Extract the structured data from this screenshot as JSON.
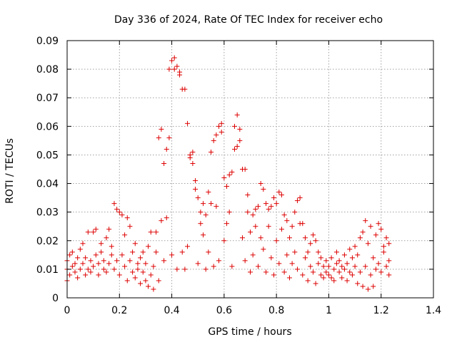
{
  "chart_data": {
    "type": "scatter",
    "title": "Day 336 of 2024, Rate Of TEC Index for receiver echo",
    "xlabel": "GPS time / hours",
    "ylabel": "ROTI / TECUs",
    "xlim": [
      0,
      1.4
    ],
    "ylim": [
      0,
      0.09
    ],
    "xticks": [
      "0",
      "0.2",
      "0.4",
      "0.6",
      "0.8",
      "1",
      "1.2",
      "1.4"
    ],
    "yticks": [
      "0",
      "0.01",
      "0.02",
      "0.03",
      "0.04",
      "0.05",
      "0.06",
      "0.07",
      "0.08",
      "0.09"
    ],
    "grid": true,
    "marker": "+",
    "series": [
      {
        "color": "#dd0000",
        "points": [
          [
            0.0,
            0.006
          ],
          [
            0.0,
            0.01
          ],
          [
            0.0,
            0.013
          ],
          [
            0.01,
            0.015
          ],
          [
            0.01,
            0.008
          ],
          [
            0.02,
            0.011
          ],
          [
            0.02,
            0.016
          ],
          [
            0.03,
            0.009
          ],
          [
            0.03,
            0.012
          ],
          [
            0.04,
            0.007
          ],
          [
            0.04,
            0.014
          ],
          [
            0.05,
            0.01
          ],
          [
            0.05,
            0.017
          ],
          [
            0.06,
            0.012
          ],
          [
            0.06,
            0.019
          ],
          [
            0.07,
            0.008
          ],
          [
            0.07,
            0.014
          ],
          [
            0.08,
            0.01
          ],
          [
            0.08,
            0.023
          ],
          [
            0.09,
            0.013
          ],
          [
            0.09,
            0.009
          ],
          [
            0.1,
            0.023
          ],
          [
            0.1,
            0.011
          ],
          [
            0.11,
            0.015
          ],
          [
            0.11,
            0.024
          ],
          [
            0.12,
            0.008
          ],
          [
            0.12,
            0.012
          ],
          [
            0.13,
            0.016
          ],
          [
            0.13,
            0.019
          ],
          [
            0.14,
            0.01
          ],
          [
            0.14,
            0.013
          ],
          [
            0.15,
            0.021
          ],
          [
            0.15,
            0.009
          ],
          [
            0.16,
            0.024
          ],
          [
            0.16,
            0.012
          ],
          [
            0.17,
            0.015
          ],
          [
            0.17,
            0.018
          ],
          [
            0.18,
            0.033
          ],
          [
            0.18,
            0.01
          ],
          [
            0.19,
            0.031
          ],
          [
            0.19,
            0.013
          ],
          [
            0.2,
            0.03
          ],
          [
            0.2,
            0.008
          ],
          [
            0.21,
            0.029
          ],
          [
            0.21,
            0.015
          ],
          [
            0.22,
            0.022
          ],
          [
            0.22,
            0.011
          ],
          [
            0.23,
            0.028
          ],
          [
            0.23,
            0.006
          ],
          [
            0.24,
            0.025
          ],
          [
            0.24,
            0.013
          ],
          [
            0.25,
            0.009
          ],
          [
            0.25,
            0.016
          ],
          [
            0.26,
            0.019
          ],
          [
            0.26,
            0.007
          ],
          [
            0.27,
            0.012
          ],
          [
            0.27,
            0.01
          ],
          [
            0.28,
            0.014
          ],
          [
            0.28,
            0.005
          ],
          [
            0.29,
            0.009
          ],
          [
            0.29,
            0.016
          ],
          [
            0.3,
            0.006
          ],
          [
            0.3,
            0.012
          ],
          [
            0.31,
            0.004
          ],
          [
            0.31,
            0.018
          ],
          [
            0.32,
            0.023
          ],
          [
            0.32,
            0.008
          ],
          [
            0.33,
            0.003
          ],
          [
            0.33,
            0.011
          ],
          [
            0.34,
            0.023
          ],
          [
            0.34,
            0.016
          ],
          [
            0.35,
            0.056
          ],
          [
            0.35,
            0.006
          ],
          [
            0.36,
            0.059
          ],
          [
            0.36,
            0.027
          ],
          [
            0.37,
            0.047
          ],
          [
            0.37,
            0.013
          ],
          [
            0.38,
            0.052
          ],
          [
            0.38,
            0.028
          ],
          [
            0.39,
            0.056
          ],
          [
            0.39,
            0.08
          ],
          [
            0.4,
            0.083
          ],
          [
            0.4,
            0.015
          ],
          [
            0.41,
            0.084
          ],
          [
            0.41,
            0.08
          ],
          [
            0.42,
            0.081
          ],
          [
            0.42,
            0.01
          ],
          [
            0.43,
            0.078
          ],
          [
            0.43,
            0.079
          ],
          [
            0.44,
            0.073
          ],
          [
            0.44,
            0.016
          ],
          [
            0.45,
            0.073
          ],
          [
            0.45,
            0.01
          ],
          [
            0.46,
            0.061
          ],
          [
            0.46,
            0.018
          ],
          [
            0.47,
            0.05
          ],
          [
            0.47,
            0.049
          ],
          [
            0.48,
            0.051
          ],
          [
            0.48,
            0.047
          ],
          [
            0.49,
            0.041
          ],
          [
            0.49,
            0.038
          ],
          [
            0.5,
            0.035
          ],
          [
            0.5,
            0.012
          ],
          [
            0.51,
            0.026
          ],
          [
            0.51,
            0.03
          ],
          [
            0.52,
            0.033
          ],
          [
            0.52,
            0.022
          ],
          [
            0.53,
            0.029
          ],
          [
            0.53,
            0.01
          ],
          [
            0.54,
            0.037
          ],
          [
            0.54,
            0.016
          ],
          [
            0.55,
            0.051
          ],
          [
            0.55,
            0.033
          ],
          [
            0.56,
            0.055
          ],
          [
            0.56,
            0.011
          ],
          [
            0.57,
            0.057
          ],
          [
            0.57,
            0.032
          ],
          [
            0.58,
            0.06
          ],
          [
            0.58,
            0.013
          ],
          [
            0.59,
            0.061
          ],
          [
            0.59,
            0.058
          ],
          [
            0.6,
            0.042
          ],
          [
            0.6,
            0.02
          ],
          [
            0.61,
            0.039
          ],
          [
            0.61,
            0.026
          ],
          [
            0.62,
            0.043
          ],
          [
            0.62,
            0.03
          ],
          [
            0.63,
            0.044
          ],
          [
            0.63,
            0.011
          ],
          [
            0.64,
            0.052
          ],
          [
            0.64,
            0.06
          ],
          [
            0.65,
            0.064
          ],
          [
            0.65,
            0.053
          ],
          [
            0.66,
            0.059
          ],
          [
            0.66,
            0.055
          ],
          [
            0.67,
            0.045
          ],
          [
            0.67,
            0.021
          ],
          [
            0.68,
            0.045
          ],
          [
            0.68,
            0.013
          ],
          [
            0.69,
            0.036
          ],
          [
            0.69,
            0.03
          ],
          [
            0.7,
            0.023
          ],
          [
            0.7,
            0.009
          ],
          [
            0.71,
            0.029
          ],
          [
            0.71,
            0.015
          ],
          [
            0.72,
            0.031
          ],
          [
            0.72,
            0.025
          ],
          [
            0.73,
            0.032
          ],
          [
            0.73,
            0.011
          ],
          [
            0.74,
            0.04
          ],
          [
            0.74,
            0.021
          ],
          [
            0.75,
            0.038
          ],
          [
            0.75,
            0.017
          ],
          [
            0.76,
            0.033
          ],
          [
            0.76,
            0.009
          ],
          [
            0.77,
            0.031
          ],
          [
            0.77,
            0.025
          ],
          [
            0.78,
            0.032
          ],
          [
            0.78,
            0.014
          ],
          [
            0.79,
            0.035
          ],
          [
            0.79,
            0.008
          ],
          [
            0.8,
            0.033
          ],
          [
            0.8,
            0.02
          ],
          [
            0.81,
            0.037
          ],
          [
            0.81,
            0.012
          ],
          [
            0.82,
            0.036
          ],
          [
            0.82,
            0.024
          ],
          [
            0.83,
            0.029
          ],
          [
            0.83,
            0.009
          ],
          [
            0.84,
            0.027
          ],
          [
            0.84,
            0.015
          ],
          [
            0.85,
            0.021
          ],
          [
            0.85,
            0.007
          ],
          [
            0.86,
            0.025
          ],
          [
            0.86,
            0.012
          ],
          [
            0.87,
            0.03
          ],
          [
            0.87,
            0.016
          ],
          [
            0.88,
            0.034
          ],
          [
            0.88,
            0.01
          ],
          [
            0.89,
            0.035
          ],
          [
            0.89,
            0.026
          ],
          [
            0.9,
            0.026
          ],
          [
            0.9,
            0.008
          ],
          [
            0.91,
            0.021
          ],
          [
            0.91,
            0.014
          ],
          [
            0.92,
            0.016
          ],
          [
            0.92,
            0.006
          ],
          [
            0.93,
            0.019
          ],
          [
            0.93,
            0.011
          ],
          [
            0.94,
            0.022
          ],
          [
            0.94,
            0.009
          ],
          [
            0.95,
            0.02
          ],
          [
            0.95,
            0.005
          ],
          [
            0.96,
            0.016
          ],
          [
            0.96,
            0.012
          ],
          [
            0.97,
            0.014
          ],
          [
            0.97,
            0.008
          ],
          [
            0.98,
            0.011
          ],
          [
            0.98,
            0.007
          ],
          [
            0.99,
            0.009
          ],
          [
            0.99,
            0.013
          ],
          [
            1.0,
            0.008
          ],
          [
            1.0,
            0.011
          ],
          [
            1.01,
            0.007
          ],
          [
            1.01,
            0.014
          ],
          [
            1.02,
            0.01
          ],
          [
            1.02,
            0.006
          ],
          [
            1.03,
            0.012
          ],
          [
            1.03,
            0.016
          ],
          [
            1.04,
            0.009
          ],
          [
            1.04,
            0.013
          ],
          [
            1.05,
            0.011
          ],
          [
            1.05,
            0.007
          ],
          [
            1.06,
            0.015
          ],
          [
            1.06,
            0.01
          ],
          [
            1.07,
            0.012
          ],
          [
            1.07,
            0.006
          ],
          [
            1.08,
            0.017
          ],
          [
            1.08,
            0.009
          ],
          [
            1.09,
            0.008
          ],
          [
            1.09,
            0.014
          ],
          [
            1.1,
            0.018
          ],
          [
            1.1,
            0.011
          ],
          [
            1.11,
            0.005
          ],
          [
            1.11,
            0.015
          ],
          [
            1.12,
            0.021
          ],
          [
            1.12,
            0.009
          ],
          [
            1.13,
            0.004
          ],
          [
            1.13,
            0.023
          ],
          [
            1.14,
            0.027
          ],
          [
            1.14,
            0.011
          ],
          [
            1.15,
            0.003
          ],
          [
            1.15,
            0.019
          ],
          [
            1.16,
            0.025
          ],
          [
            1.16,
            0.008
          ],
          [
            1.17,
            0.014
          ],
          [
            1.17,
            0.004
          ],
          [
            1.18,
            0.022
          ],
          [
            1.18,
            0.01
          ],
          [
            1.19,
            0.026
          ],
          [
            1.19,
            0.012
          ],
          [
            1.2,
            0.024
          ],
          [
            1.2,
            0.009
          ],
          [
            1.21,
            0.018
          ],
          [
            1.21,
            0.016
          ],
          [
            1.22,
            0.021
          ],
          [
            1.22,
            0.011
          ],
          [
            1.23,
            0.019
          ],
          [
            1.23,
            0.008
          ],
          [
            1.23,
            0.013
          ]
        ]
      }
    ]
  }
}
